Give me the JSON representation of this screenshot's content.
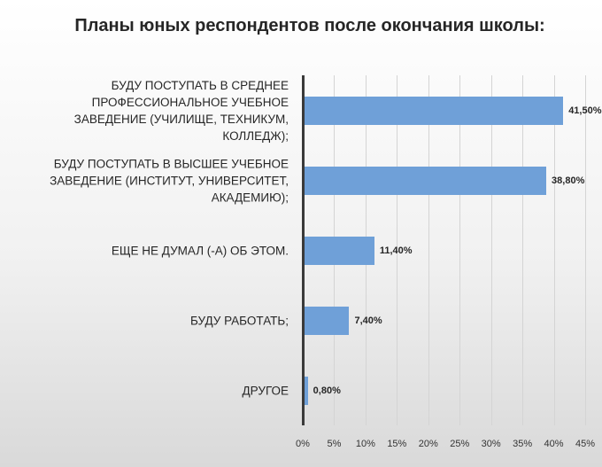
{
  "chart_data": {
    "type": "bar",
    "orientation": "horizontal",
    "title": "Планы юных респондентов после окончания школы:",
    "categories": [
      "БУДУ ПОСТУПАТЬ В СРЕДНЕЕ ПРОФЕССИОНАЛЬНОЕ УЧЕБНОЕ ЗАВЕДЕНИЕ (УЧИЛИЩЕ, ТЕХНИКУМ, КОЛЛЕДЖ);",
      "БУДУ ПОСТУПАТЬ В ВЫСШЕЕ УЧЕБНОЕ ЗАВЕДЕНИЕ (ИНСТИТУТ, УНИВЕРСИТЕТ, АКАДЕМИЮ);",
      "ЕЩЕ НЕ ДУМАЛ (-А) ОБ ЭТОМ.",
      "БУДУ РАБОТАТЬ;",
      "ДРУГОЕ"
    ],
    "values": [
      41.5,
      38.8,
      11.4,
      7.4,
      0.8
    ],
    "data_labels": [
      "41,50%",
      "38,80%",
      "11,40%",
      "7,40%",
      "0,80%"
    ],
    "xlim": [
      0,
      45
    ],
    "ticks": [
      0,
      5,
      10,
      15,
      20,
      25,
      30,
      35,
      40,
      45
    ],
    "tick_labels": [
      "0%",
      "5%",
      "10%",
      "15%",
      "20%",
      "25%",
      "30%",
      "35%",
      "40%",
      "45%"
    ],
    "bar_color": "#6fa0d8",
    "grid": true,
    "legend": "none"
  }
}
